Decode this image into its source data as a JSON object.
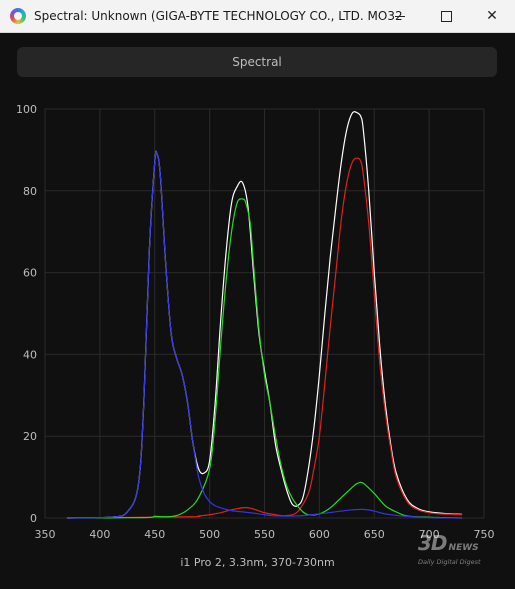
{
  "window": {
    "title": "Spectral: Unknown (GIGA-BYTE TECHNOLOGY CO., LTD. MO32...",
    "minimize_glyph": "—",
    "maximize_glyph": "☐",
    "close_glyph": "✕"
  },
  "tab": {
    "label": "Spectral"
  },
  "watermark": {
    "main": "3D",
    "news": "NEWS",
    "sub": "Daily Digital Digest"
  },
  "colors": {
    "background": "#101010",
    "grid": "#2a2a2a",
    "white": "#ffffff",
    "red": "#e02020",
    "green": "#22dd22",
    "blue": "#3535e8"
  },
  "chart_data": {
    "type": "line",
    "title": "",
    "xlabel": "i1 Pro 2, 3.3nm, 370-730nm",
    "ylabel": "",
    "xlim": [
      350,
      750
    ],
    "ylim": [
      0,
      100
    ],
    "xticks": [
      350,
      400,
      450,
      500,
      550,
      600,
      650,
      700,
      750
    ],
    "yticks": [
      0,
      20,
      40,
      60,
      80,
      100
    ],
    "grid": true,
    "series": [
      {
        "color": "white",
        "x": [
          370,
          410,
          425,
          435,
          440,
          445,
          450,
          452,
          455,
          460,
          465,
          470,
          475,
          480,
          485,
          490,
          495,
          500,
          505,
          510,
          515,
          520,
          525,
          530,
          535,
          540,
          545,
          550,
          555,
          560,
          565,
          570,
          575,
          580,
          585,
          590,
          595,
          600,
          605,
          610,
          615,
          620,
          625,
          630,
          635,
          638,
          640,
          645,
          650,
          655,
          660,
          665,
          670,
          680,
          690,
          700,
          710,
          720,
          730
        ],
        "y": [
          0,
          0.2,
          1.5,
          8,
          28,
          65,
          87,
          89,
          84,
          62,
          45,
          39,
          35,
          28,
          18,
          12,
          11,
          14,
          28,
          48,
          65,
          77,
          81,
          82,
          76,
          60,
          45,
          36,
          28,
          18,
          12,
          7,
          3.5,
          3,
          5,
          12,
          22,
          35,
          50,
          64,
          76,
          87,
          95,
          99,
          99,
          98,
          95,
          80,
          60,
          42,
          28,
          18,
          11,
          4.5,
          2.3,
          1.5,
          1.2,
          1.0,
          0.9
        ]
      },
      {
        "color": "red",
        "x": [
          370,
          480,
          490,
          500,
          510,
          520,
          530,
          535,
          540,
          550,
          560,
          570,
          580,
          590,
          595,
          600,
          605,
          610,
          615,
          620,
          625,
          630,
          635,
          638,
          640,
          645,
          650,
          655,
          660,
          665,
          670,
          680,
          690,
          700,
          710,
          720,
          730
        ],
        "y": [
          0,
          0.3,
          0.5,
          0.8,
          1.3,
          2,
          2.5,
          2.5,
          2.2,
          1.3,
          0.8,
          0.6,
          1.5,
          6,
          12,
          20,
          33,
          47,
          60,
          73,
          82,
          87,
          88,
          87,
          84,
          72,
          55,
          38,
          26,
          17,
          10,
          4,
          2,
          1.3,
          1,
          0.9,
          0.8
        ]
      },
      {
        "color": "green",
        "x": [
          370,
          440,
          450,
          460,
          470,
          480,
          490,
          500,
          505,
          510,
          515,
          520,
          525,
          530,
          533,
          537,
          540,
          545,
          550,
          555,
          560,
          565,
          570,
          575,
          580,
          585,
          590,
          600,
          610,
          620,
          630,
          635,
          640,
          650,
          660,
          670,
          680,
          700,
          730
        ],
        "y": [
          0,
          0.1,
          0.4,
          0.3,
          0.6,
          2,
          5,
          12,
          24,
          42,
          58,
          70,
          77,
          78,
          77,
          72,
          62,
          46,
          35,
          28,
          20,
          13,
          8,
          5,
          3,
          1.5,
          0.8,
          1,
          2.5,
          5,
          7.5,
          8.5,
          8.5,
          6,
          3,
          1.5,
          0.5,
          0.2,
          0
        ]
      },
      {
        "color": "blue",
        "x": [
          370,
          410,
          425,
          435,
          440,
          445,
          450,
          452,
          455,
          460,
          465,
          470,
          475,
          480,
          485,
          490,
          495,
          500,
          505,
          510,
          520,
          530,
          540,
          550,
          560,
          580,
          600,
          620,
          630,
          640,
          650,
          660,
          680,
          700,
          730
        ],
        "y": [
          0,
          0.2,
          1.5,
          8,
          28,
          65,
          87,
          89,
          84,
          62,
          45,
          39,
          35,
          28,
          18,
          10,
          6,
          4,
          3,
          2.5,
          1.8,
          1.5,
          1.2,
          0.8,
          0.5,
          0.5,
          1,
          1.7,
          2,
          2.1,
          1.7,
          1,
          0.4,
          0.1,
          0
        ]
      }
    ]
  }
}
